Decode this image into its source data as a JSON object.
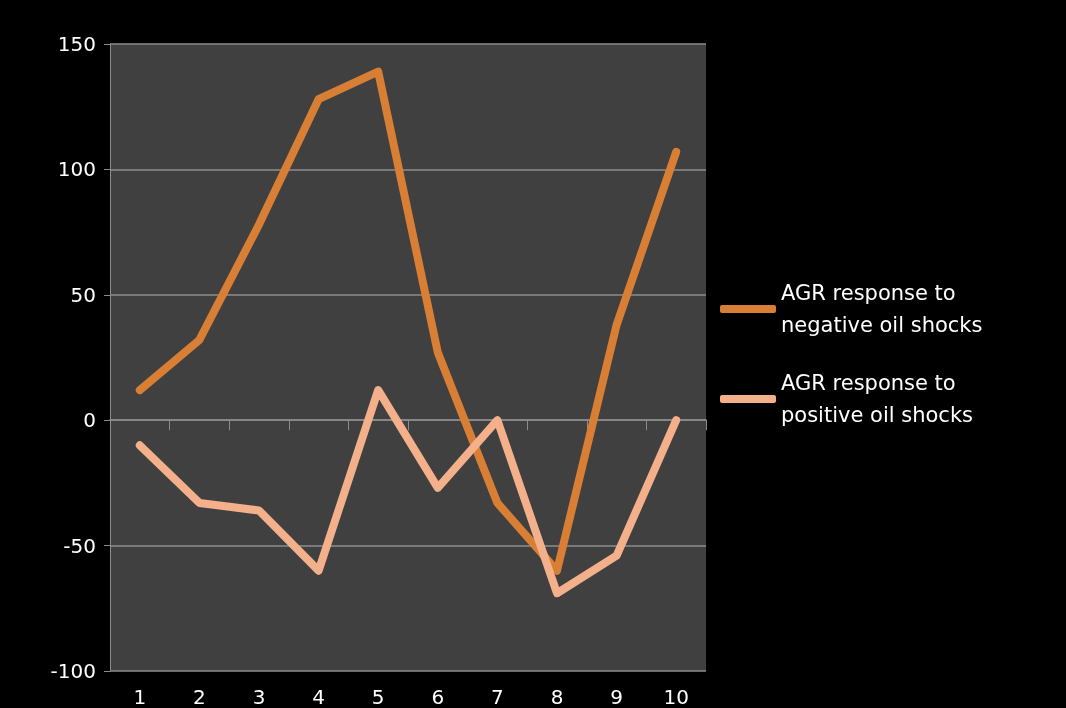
{
  "chart_data": {
    "type": "line",
    "categories": [
      "1",
      "2",
      "3",
      "4",
      "5",
      "6",
      "7",
      "8",
      "9",
      "10"
    ],
    "series": [
      {
        "name": "AGR response to negative oil shocks",
        "color": "#d97f35",
        "values": [
          12,
          32,
          78,
          128,
          139,
          27,
          -33,
          -60,
          38,
          107
        ]
      },
      {
        "name": "AGR response to positive oil shocks",
        "color": "#f4b08a",
        "values": [
          -10,
          -33,
          -36,
          -60,
          12,
          -27,
          0,
          -69,
          -54,
          0
        ]
      }
    ],
    "ylim": [
      -100,
      150
    ],
    "yticks": [
      -100,
      -50,
      0,
      50,
      100,
      150
    ],
    "grid": "y",
    "legend": "right",
    "marker": "none",
    "line_style": "solid"
  }
}
